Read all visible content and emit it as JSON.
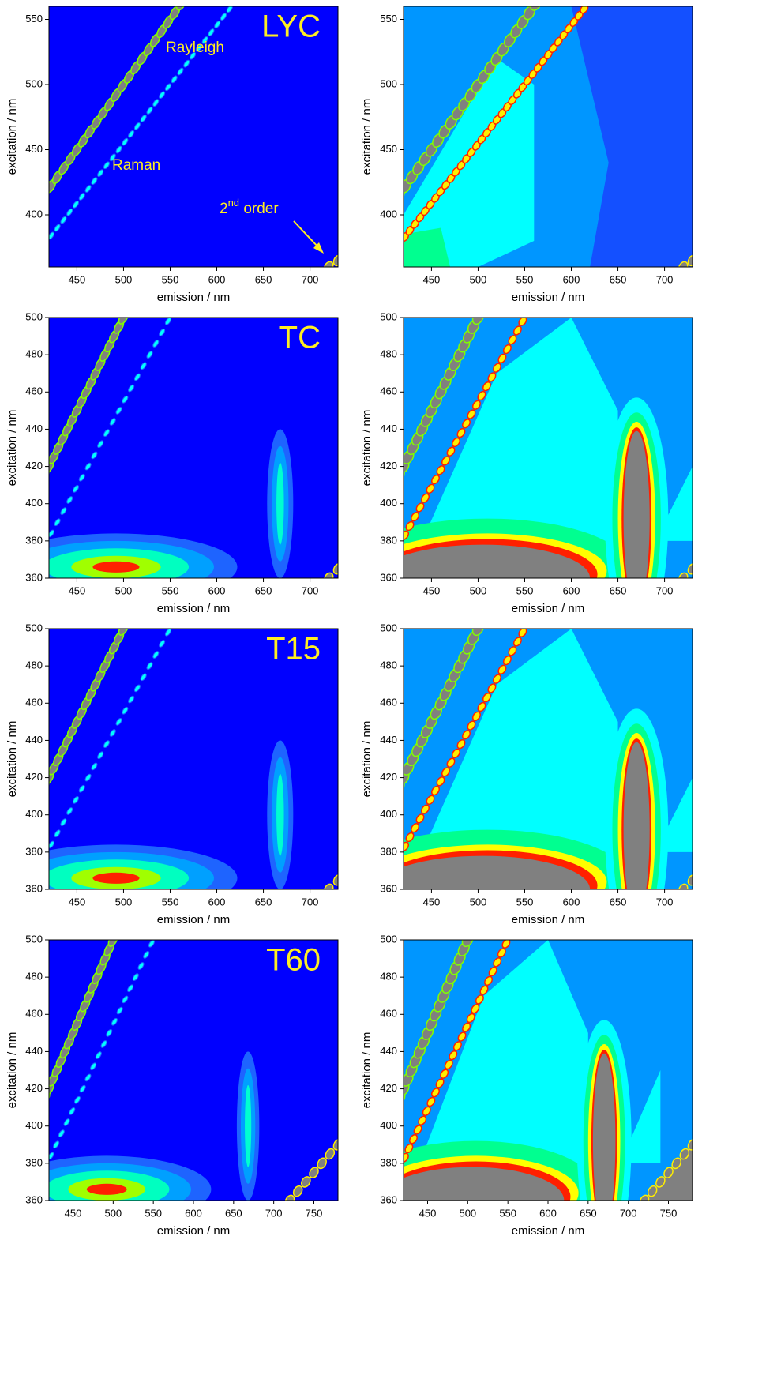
{
  "chart_data": [
    {
      "type": "contour",
      "label": "LYC",
      "annotations": [
        "Rayleigh",
        "Raman"
      ],
      "annotation_order": {
        "number": "2",
        "sup": "nd",
        "text": " order"
      },
      "xlabel": "emission / nm",
      "ylabel": "excitation / nm",
      "xlim": [
        420,
        730
      ],
      "ylim": [
        360,
        560
      ],
      "xticks": [
        450,
        500,
        550,
        600,
        650,
        700
      ],
      "yticks": [
        400,
        450,
        500,
        550
      ]
    },
    {
      "type": "contour",
      "xlabel": "emission / nm",
      "ylabel": "excitation / nm",
      "xlim": [
        420,
        730
      ],
      "ylim": [
        360,
        560
      ],
      "xticks": [
        450,
        500,
        550,
        600,
        650,
        700
      ],
      "yticks": [
        400,
        450,
        500,
        550
      ]
    },
    {
      "type": "contour",
      "label": "TC",
      "xlabel": "emission / nm",
      "ylabel": "excitation / nm",
      "xlim": [
        420,
        730
      ],
      "ylim": [
        360,
        500
      ],
      "xticks": [
        450,
        500,
        550,
        600,
        650,
        700
      ],
      "yticks": [
        360,
        380,
        400,
        420,
        440,
        460,
        480,
        500
      ]
    },
    {
      "type": "contour",
      "xlabel": "emission / nm",
      "ylabel": "excitation / nm",
      "xlim": [
        420,
        730
      ],
      "ylim": [
        360,
        500
      ],
      "xticks": [
        450,
        500,
        550,
        600,
        650,
        700
      ],
      "yticks": [
        360,
        380,
        400,
        420,
        440,
        460,
        480,
        500
      ]
    },
    {
      "type": "contour",
      "label": "T15",
      "xlabel": "emission / nm",
      "ylabel": "excitation / nm",
      "xlim": [
        420,
        730
      ],
      "ylim": [
        360,
        500
      ],
      "xticks": [
        450,
        500,
        550,
        600,
        650,
        700
      ],
      "yticks": [
        360,
        380,
        400,
        420,
        440,
        460,
        480,
        500
      ]
    },
    {
      "type": "contour",
      "xlabel": "emission / nm",
      "ylabel": "excitation / nm",
      "xlim": [
        420,
        730
      ],
      "ylim": [
        360,
        500
      ],
      "xticks": [
        450,
        500,
        550,
        600,
        650,
        700
      ],
      "yticks": [
        360,
        380,
        400,
        420,
        440,
        460,
        480,
        500
      ]
    },
    {
      "type": "contour",
      "label": "T60",
      "xlabel": "emission / nm",
      "ylabel": "excitation / nm",
      "xlim": [
        420,
        780
      ],
      "ylim": [
        360,
        500
      ],
      "xticks": [
        450,
        500,
        550,
        600,
        650,
        700,
        750
      ],
      "yticks": [
        360,
        380,
        400,
        420,
        440,
        460,
        480,
        500
      ]
    },
    {
      "type": "contour",
      "xlabel": "emission / nm",
      "ylabel": "excitation / nm",
      "xlim": [
        420,
        780
      ],
      "ylim": [
        360,
        500
      ],
      "xticks": [
        450,
        500,
        550,
        600,
        650,
        700,
        750
      ],
      "yticks": [
        360,
        380,
        400,
        420,
        440,
        460,
        480,
        500
      ]
    }
  ]
}
